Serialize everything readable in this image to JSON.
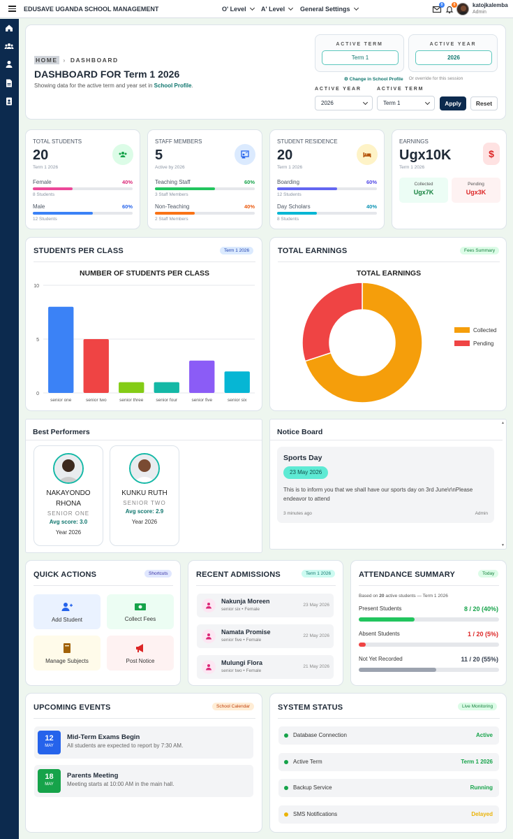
{
  "topbar": {
    "brand": "EDUSAVE UGANDA SCHOOL MANAGEMENT",
    "nav": [
      "O' Level",
      "A' Level",
      "General Settings"
    ],
    "mail_count": "0",
    "bell_count": "0",
    "user_name": "katojkalemba",
    "user_role": "Admin"
  },
  "header": {
    "breadcrumb_home": "HOME",
    "breadcrumb_current": "DASHBOARD",
    "title": "DASHBOARD FOR Term 1 2026",
    "subtitle_pre": "Showing data for the active term and year set in ",
    "subtitle_link": "School Profile",
    "subtitle_post": ".",
    "active_term_label": "ACTIVE TERM",
    "active_term_value": "Term 1",
    "active_year_label": "ACTIVE YEAR",
    "active_year_value": "2026",
    "change_link": "Change in School Profile",
    "override_text": "Or override for this session",
    "year_select_label": "ACTIVE YEAR",
    "year_select_value": "2026",
    "term_select_label": "ACTIVE TERM",
    "term_select_value": "Term 1",
    "apply": "Apply",
    "reset": "Reset"
  },
  "stats": {
    "students": {
      "label": "TOTAL STUDENTS",
      "value": "20",
      "sub": "Term 1 2026",
      "rows": [
        {
          "label": "Female",
          "pct": "40%",
          "fill": 0.4,
          "note": "8 Students"
        },
        {
          "label": "Male",
          "pct": "60%",
          "fill": 0.6,
          "note": "12 Students"
        }
      ]
    },
    "staff": {
      "label": "STAFF MEMBERS",
      "value": "5",
      "sub": "Active by 2026",
      "rows": [
        {
          "label": "Teaching Staff",
          "pct": "60%",
          "fill": 0.6,
          "note": "3 Staff Members"
        },
        {
          "label": "Non-Teaching",
          "pct": "40%",
          "fill": 0.4,
          "note": "2 Staff Members"
        }
      ]
    },
    "residence": {
      "label": "STUDENT RESIDENCE",
      "value": "20",
      "sub": "Term 1 2026",
      "rows": [
        {
          "label": "Boarding",
          "pct": "60%",
          "fill": 0.6,
          "note": "12 Students"
        },
        {
          "label": "Day Scholars",
          "pct": "40%",
          "fill": 0.4,
          "note": "8 Students"
        }
      ]
    },
    "earnings": {
      "label": "EARNINGS",
      "value": "Ugx10K",
      "sub": "Term 1 2026",
      "collected_label": "Collected",
      "collected_value": "Ugx7K",
      "pending_label": "Pending",
      "pending_value": "Ugx3K"
    }
  },
  "students_chart": {
    "card_title": "STUDENTS PER CLASS",
    "pill": "Term 1 2026"
  },
  "earnings_chart": {
    "card_title": "TOTAL EARNINGS",
    "pill": "Fees Summary"
  },
  "chart_data": [
    {
      "type": "bar",
      "title": "NUMBER OF STUDENTS PER CLASS",
      "categories": [
        "senior one",
        "senior two",
        "senior three",
        "senior four",
        "senior five",
        "senior six"
      ],
      "values": [
        8,
        5,
        1,
        1,
        3,
        2
      ],
      "colors": [
        "#3b82f6",
        "#ef4444",
        "#84cc16",
        "#14b8a6",
        "#8b5cf6",
        "#06b6d4"
      ],
      "ylim": [
        0,
        10
      ],
      "yticks": [
        0,
        5,
        10
      ],
      "grid": true
    },
    {
      "type": "pie",
      "title": "TOTAL EARNINGS",
      "labels": [
        "Collected",
        "Pending"
      ],
      "values": [
        7,
        3
      ],
      "colors": [
        "#f59e0b",
        "#ef4444"
      ],
      "legend": "right"
    }
  ],
  "best": {
    "title": "Best Performers",
    "people": [
      {
        "name1": "NAKAYONDO",
        "name2": "RHONA",
        "cls": "SENIOR ONE",
        "avg": "Avg score: 3.0",
        "year": "Year 2026"
      },
      {
        "name1": "KUNKU RUTH",
        "name2": "",
        "cls": "SENIOR TWO",
        "avg": "Avg score: 2.9",
        "year": "Year 2026"
      }
    ]
  },
  "notice": {
    "title": "Notice Board",
    "item_title": "Sports Day",
    "date": "23 May 2026",
    "body": "This is to inform you that we shall have our sports day on 3rd June\\r\\nPlease endeavor to attend",
    "time": "3 minutes ago",
    "author": "Admin"
  },
  "quick": {
    "title": "QUICK ACTIONS",
    "pill": "Shortcuts",
    "items": [
      "Add Student",
      "Collect Fees",
      "Manage Subjects",
      "Post Notice"
    ]
  },
  "admissions": {
    "title": "RECENT ADMISSIONS",
    "pill": "Term 1 2026",
    "items": [
      {
        "name": "Nakunja Moreen",
        "meta": "senior six • Female",
        "date": "23 May 2026"
      },
      {
        "name": "Namata Promise",
        "meta": "senior five • Female",
        "date": "22 May 2026"
      },
      {
        "name": "Mulungi Flora",
        "meta": "senior two • Female",
        "date": "21 May 2026"
      }
    ]
  },
  "attendance": {
    "title": "ATTENDANCE SUMMARY",
    "pill": "Today",
    "based_pre": "Based on ",
    "based_num": "20",
    "based_post": " active students — Term 1 2026",
    "rows": [
      {
        "label": "Present Students",
        "value": "8 / 20 (40%)",
        "fill": 0.4,
        "color": "#22c55e",
        "vcolor": "#16a34a"
      },
      {
        "label": "Absent Students",
        "value": "1 / 20 (5%)",
        "fill": 0.05,
        "color": "#ef4444",
        "vcolor": "#dc2626"
      },
      {
        "label": "Not Yet Recorded",
        "value": "11 / 20 (55%)",
        "fill": 0.55,
        "color": "#9ca3af",
        "vcolor": "#374151"
      }
    ]
  },
  "events": {
    "title": "UPCOMING EVENTS",
    "pill": "School Calendar",
    "items": [
      {
        "day": "12",
        "month": "MAY",
        "name": "Mid-Term Exams Begin",
        "desc": "All students are expected to report by 7:30 AM.",
        "color": "#2563eb"
      },
      {
        "day": "18",
        "month": "MAY",
        "name": "Parents Meeting",
        "desc": "Meeting starts at 10:00 AM in the main hall.",
        "color": "#16a34a"
      }
    ]
  },
  "system": {
    "title": "SYSTEM STATUS",
    "pill": "Live Monitoring",
    "items": [
      {
        "label": "Database Connection",
        "status": "Active",
        "color": "#16a34a"
      },
      {
        "label": "Active Term",
        "status": "Term 1 2026",
        "color": "#16a34a"
      },
      {
        "label": "Backup Service",
        "status": "Running",
        "color": "#16a34a"
      },
      {
        "label": "SMS Notifications",
        "status": "Delayed",
        "color": "#eab308"
      }
    ]
  }
}
